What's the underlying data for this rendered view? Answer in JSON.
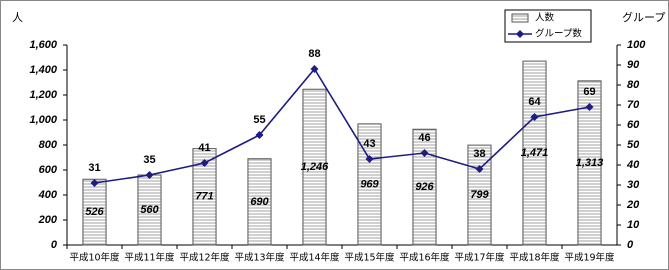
{
  "chart_data": {
    "type": "bar-line",
    "categories": [
      "平成10年度",
      "平成11年度",
      "平成12年度",
      "平成13年度",
      "平成14年度",
      "平成15年度",
      "平成16年度",
      "平成17年度",
      "平成18年度",
      "平成19年度"
    ],
    "y_label": "人",
    "y2_label": "グループ",
    "series": [
      {
        "name": "人数",
        "type": "bar",
        "color": "#d9d9d9",
        "values": [
          526,
          560,
          771,
          690,
          1246,
          969,
          926,
          799,
          1471,
          1313
        ],
        "value_labels": [
          "526",
          "560",
          "771",
          "690",
          "1,246",
          "969",
          "926",
          "799",
          "1,471",
          "1,313"
        ]
      },
      {
        "name": "グループ数",
        "type": "line",
        "axis": "y2",
        "color": "#1c1c84",
        "values": [
          31,
          35,
          41,
          55,
          88,
          43,
          46,
          38,
          64,
          69
        ]
      }
    ],
    "ylim": [
      0,
      1600
    ],
    "yticks": [
      0,
      200,
      400,
      600,
      800,
      {
        "value": 1000,
        "label": "1,000"
      },
      {
        "value": 1200,
        "label": "1,200"
      },
      {
        "value": 1400,
        "label": "1,400"
      },
      {
        "value": 1600,
        "label": "1,600"
      }
    ],
    "y2lim": [
      0,
      100
    ],
    "y2ticks": [
      0,
      10,
      20,
      30,
      40,
      50,
      60,
      70,
      80,
      90,
      100
    ],
    "legend": "top-right"
  }
}
